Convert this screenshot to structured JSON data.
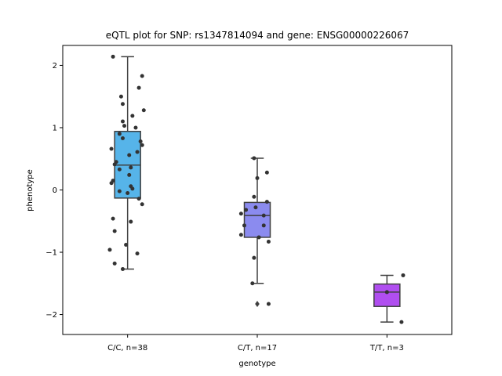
{
  "chart_data": {
    "type": "box",
    "title": "eQTL plot for SNP: rs1347814094 and gene: ENSG00000226067",
    "xlabel": "genotype",
    "ylabel": "phenotype",
    "ylim": [
      -2.32,
      2.32
    ],
    "yticks": [
      -2,
      -1,
      0,
      1,
      2
    ],
    "grid": false,
    "categories": [
      "C/C, n=38",
      "C/T, n=17",
      "T/T, n=3"
    ],
    "colors": [
      "#56b4e9",
      "#8b8bef",
      "#b04ef0"
    ],
    "boxes": [
      {
        "q1": -0.13,
        "median": 0.4,
        "q3": 0.94,
        "whisker_low": -1.27,
        "whisker_high": 2.14,
        "outliers": []
      },
      {
        "q1": -0.76,
        "median": -0.41,
        "q3": -0.2,
        "whisker_low": -1.5,
        "whisker_high": 0.51,
        "outliers": [
          -1.83
        ]
      },
      {
        "q1": -1.87,
        "median": -1.64,
        "q3": -1.51,
        "whisker_low": -2.12,
        "whisker_high": -1.37,
        "outliers": []
      }
    ],
    "points": [
      [
        [
          -0.18,
          2.14
        ],
        [
          0.18,
          1.83
        ],
        [
          -0.08,
          1.5
        ],
        [
          0.14,
          1.64
        ],
        [
          -0.06,
          1.38
        ],
        [
          0.2,
          1.28
        ],
        [
          0.06,
          1.19
        ],
        [
          -0.06,
          1.1
        ],
        [
          0.1,
          1.0
        ],
        [
          -0.04,
          1.03
        ],
        [
          0.16,
          0.78
        ],
        [
          -0.1,
          0.9
        ],
        [
          0.18,
          0.72
        ],
        [
          -0.06,
          0.83
        ],
        [
          -0.2,
          0.66
        ],
        [
          0.12,
          0.61
        ],
        [
          0.02,
          0.56
        ],
        [
          -0.14,
          0.45
        ],
        [
          -0.16,
          0.41
        ],
        [
          -0.1,
          0.33
        ],
        [
          0.04,
          0.36
        ],
        [
          0.02,
          0.24
        ],
        [
          -0.18,
          0.15
        ],
        [
          -0.2,
          0.11
        ],
        [
          0.04,
          0.06
        ],
        [
          0.06,
          0.02
        ],
        [
          -0.1,
          -0.02
        ],
        [
          0.0,
          -0.05
        ],
        [
          0.14,
          -0.14
        ],
        [
          0.18,
          -0.23
        ],
        [
          -0.18,
          -0.46
        ],
        [
          0.04,
          -0.51
        ],
        [
          -0.16,
          -0.66
        ],
        [
          -0.02,
          -0.88
        ],
        [
          -0.22,
          -0.96
        ],
        [
          0.12,
          -1.02
        ],
        [
          -0.16,
          -1.18
        ],
        [
          -0.06,
          -1.27
        ]
      ],
      [
        [
          -0.04,
          0.51
        ],
        [
          0.12,
          0.28
        ],
        [
          0.0,
          0.19
        ],
        [
          -0.04,
          -0.11
        ],
        [
          0.12,
          -0.19
        ],
        [
          -0.02,
          -0.28
        ],
        [
          -0.14,
          -0.32
        ],
        [
          -0.2,
          -0.38
        ],
        [
          0.08,
          -0.41
        ],
        [
          -0.16,
          -0.57
        ],
        [
          0.08,
          -0.57
        ],
        [
          -0.2,
          -0.72
        ],
        [
          0.02,
          -0.76
        ],
        [
          0.14,
          -0.83
        ],
        [
          -0.04,
          -1.09
        ],
        [
          -0.06,
          -1.5
        ],
        [
          0.14,
          -1.83
        ]
      ],
      [
        [
          0.2,
          -1.37
        ],
        [
          0.0,
          -1.64
        ],
        [
          0.18,
          -2.12
        ]
      ]
    ]
  }
}
